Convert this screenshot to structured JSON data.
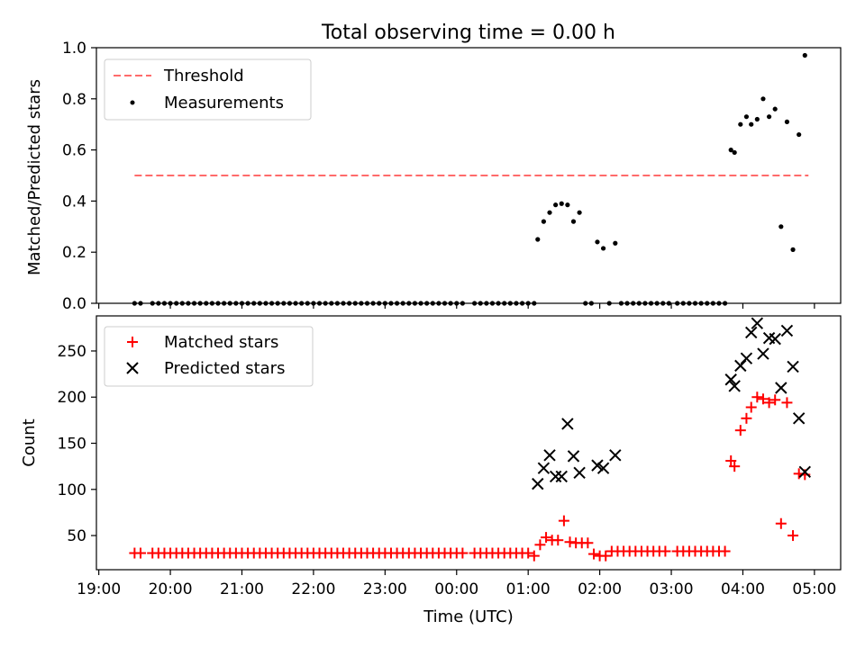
{
  "figure": {
    "title": "Total observing time = 0.00 h",
    "xlabel": "Time (UTC)",
    "x_ticks": [
      "19:00",
      "20:00",
      "21:00",
      "22:00",
      "23:00",
      "00:00",
      "01:00",
      "02:00",
      "03:00",
      "04:00",
      "05:00"
    ]
  },
  "chart_data": [
    {
      "type": "scatter",
      "ylabel": "Matched/Predicted stars",
      "ylim": [
        0,
        1.0
      ],
      "y_ticks": [
        "0.0",
        "0.2",
        "0.4",
        "0.6",
        "0.8",
        "1.0"
      ],
      "legend_position": "upper-left",
      "threshold": {
        "name": "Threshold",
        "value": 0.5,
        "color": "#ff6b6b",
        "x_start": "19:30",
        "x_end": "04:55"
      },
      "series": [
        {
          "name": "Measurements",
          "color": "#000000",
          "marker": "dot",
          "points": [
            [
              "19:30",
              0
            ],
            [
              "19:35",
              0
            ],
            [
              "19:45",
              0
            ],
            [
              "19:50",
              0
            ],
            [
              "19:55",
              0
            ],
            [
              "20:00",
              0
            ],
            [
              "20:05",
              0
            ],
            [
              "20:10",
              0
            ],
            [
              "20:15",
              0
            ],
            [
              "20:20",
              0
            ],
            [
              "20:25",
              0
            ],
            [
              "20:30",
              0
            ],
            [
              "20:35",
              0
            ],
            [
              "20:40",
              0
            ],
            [
              "20:45",
              0
            ],
            [
              "20:50",
              0
            ],
            [
              "20:55",
              0
            ],
            [
              "21:00",
              0
            ],
            [
              "21:05",
              0
            ],
            [
              "21:10",
              0
            ],
            [
              "21:15",
              0
            ],
            [
              "21:20",
              0
            ],
            [
              "21:25",
              0
            ],
            [
              "21:30",
              0
            ],
            [
              "21:35",
              0
            ],
            [
              "21:40",
              0
            ],
            [
              "21:45",
              0
            ],
            [
              "21:50",
              0
            ],
            [
              "21:55",
              0
            ],
            [
              "22:00",
              0
            ],
            [
              "22:05",
              0
            ],
            [
              "22:10",
              0
            ],
            [
              "22:15",
              0
            ],
            [
              "22:20",
              0
            ],
            [
              "22:25",
              0
            ],
            [
              "22:30",
              0
            ],
            [
              "22:35",
              0
            ],
            [
              "22:40",
              0
            ],
            [
              "22:45",
              0
            ],
            [
              "22:50",
              0
            ],
            [
              "22:55",
              0
            ],
            [
              "23:00",
              0
            ],
            [
              "23:05",
              0
            ],
            [
              "23:10",
              0
            ],
            [
              "23:15",
              0
            ],
            [
              "23:20",
              0
            ],
            [
              "23:25",
              0
            ],
            [
              "23:30",
              0
            ],
            [
              "23:35",
              0
            ],
            [
              "23:40",
              0
            ],
            [
              "23:45",
              0
            ],
            [
              "23:50",
              0
            ],
            [
              "23:55",
              0
            ],
            [
              "00:00",
              0
            ],
            [
              "00:05",
              0
            ],
            [
              "00:15",
              0
            ],
            [
              "00:20",
              0
            ],
            [
              "00:25",
              0
            ],
            [
              "00:30",
              0
            ],
            [
              "00:35",
              0
            ],
            [
              "00:40",
              0
            ],
            [
              "00:45",
              0
            ],
            [
              "00:50",
              0
            ],
            [
              "00:55",
              0
            ],
            [
              "01:00",
              0
            ],
            [
              "01:05",
              0
            ],
            [
              "01:08",
              0.25
            ],
            [
              "01:13",
              0.32
            ],
            [
              "01:18",
              0.355
            ],
            [
              "01:23",
              0.385
            ],
            [
              "01:28",
              0.39
            ],
            [
              "01:33",
              0.385
            ],
            [
              "01:38",
              0.32
            ],
            [
              "01:43",
              0.355
            ],
            [
              "01:48",
              0
            ],
            [
              "01:53",
              0
            ],
            [
              "01:58",
              0.24
            ],
            [
              "02:03",
              0.215
            ],
            [
              "02:08",
              0
            ],
            [
              "02:13",
              0.235
            ],
            [
              "02:18",
              0
            ],
            [
              "02:23",
              0
            ],
            [
              "02:28",
              0
            ],
            [
              "02:33",
              0
            ],
            [
              "02:38",
              0
            ],
            [
              "02:43",
              0
            ],
            [
              "02:48",
              0
            ],
            [
              "02:53",
              0
            ],
            [
              "02:58",
              0
            ],
            [
              "03:05",
              0
            ],
            [
              "03:10",
              0
            ],
            [
              "03:15",
              0
            ],
            [
              "03:20",
              0
            ],
            [
              "03:25",
              0
            ],
            [
              "03:30",
              0
            ],
            [
              "03:35",
              0
            ],
            [
              "03:40",
              0
            ],
            [
              "03:45",
              0
            ],
            [
              "03:50",
              0.6
            ],
            [
              "03:53",
              0.59
            ],
            [
              "03:58",
              0.7
            ],
            [
              "04:03",
              0.73
            ],
            [
              "04:07",
              0.7
            ],
            [
              "04:12",
              0.72
            ],
            [
              "04:17",
              0.8
            ],
            [
              "04:22",
              0.73
            ],
            [
              "04:27",
              0.76
            ],
            [
              "04:32",
              0.3
            ],
            [
              "04:37",
              0.71
            ],
            [
              "04:42",
              0.21
            ],
            [
              "04:47",
              0.66
            ],
            [
              "04:52",
              0.97
            ]
          ]
        }
      ]
    },
    {
      "type": "scatter",
      "ylabel": "Count",
      "ylim": [
        13,
        288
      ],
      "y_ticks": [
        "50",
        "100",
        "150",
        "200",
        "250"
      ],
      "legend_position": "upper-left",
      "series": [
        {
          "name": "Matched stars",
          "color": "#ff0000",
          "marker": "plus",
          "points": [
            [
              "19:30",
              31
            ],
            [
              "19:35",
              31
            ],
            [
              "19:45",
              31
            ],
            [
              "19:50",
              31
            ],
            [
              "19:55",
              31
            ],
            [
              "20:00",
              31
            ],
            [
              "20:05",
              31
            ],
            [
              "20:10",
              31
            ],
            [
              "20:15",
              31
            ],
            [
              "20:20",
              31
            ],
            [
              "20:25",
              31
            ],
            [
              "20:30",
              31
            ],
            [
              "20:35",
              31
            ],
            [
              "20:40",
              31
            ],
            [
              "20:45",
              31
            ],
            [
              "20:50",
              31
            ],
            [
              "20:55",
              31
            ],
            [
              "21:00",
              31
            ],
            [
              "21:05",
              31
            ],
            [
              "21:10",
              31
            ],
            [
              "21:15",
              31
            ],
            [
              "21:20",
              31
            ],
            [
              "21:25",
              31
            ],
            [
              "21:30",
              31
            ],
            [
              "21:35",
              31
            ],
            [
              "21:40",
              31
            ],
            [
              "21:45",
              31
            ],
            [
              "21:50",
              31
            ],
            [
              "21:55",
              31
            ],
            [
              "22:00",
              31
            ],
            [
              "22:05",
              31
            ],
            [
              "22:10",
              31
            ],
            [
              "22:15",
              31
            ],
            [
              "22:20",
              31
            ],
            [
              "22:25",
              31
            ],
            [
              "22:30",
              31
            ],
            [
              "22:35",
              31
            ],
            [
              "22:40",
              31
            ],
            [
              "22:45",
              31
            ],
            [
              "22:50",
              31
            ],
            [
              "22:55",
              31
            ],
            [
              "23:00",
              31
            ],
            [
              "23:05",
              31
            ],
            [
              "23:10",
              31
            ],
            [
              "23:15",
              31
            ],
            [
              "23:20",
              31
            ],
            [
              "23:25",
              31
            ],
            [
              "23:30",
              31
            ],
            [
              "23:35",
              31
            ],
            [
              "23:40",
              31
            ],
            [
              "23:45",
              31
            ],
            [
              "23:50",
              31
            ],
            [
              "23:55",
              31
            ],
            [
              "00:00",
              31
            ],
            [
              "00:05",
              31
            ],
            [
              "00:15",
              31
            ],
            [
              "00:20",
              31
            ],
            [
              "00:25",
              31
            ],
            [
              "00:30",
              31
            ],
            [
              "00:35",
              31
            ],
            [
              "00:40",
              31
            ],
            [
              "00:45",
              31
            ],
            [
              "00:50",
              31
            ],
            [
              "00:55",
              31
            ],
            [
              "01:00",
              31
            ],
            [
              "01:05",
              28
            ],
            [
              "01:10",
              40
            ],
            [
              "01:15",
              48
            ],
            [
              "01:20",
              45
            ],
            [
              "01:25",
              45
            ],
            [
              "01:30",
              66
            ],
            [
              "01:35",
              43
            ],
            [
              "01:40",
              42
            ],
            [
              "01:45",
              42
            ],
            [
              "01:50",
              42
            ],
            [
              "01:55",
              30
            ],
            [
              "02:00",
              28
            ],
            [
              "02:05",
              28
            ],
            [
              "02:10",
              33
            ],
            [
              "02:15",
              33
            ],
            [
              "02:20",
              33
            ],
            [
              "02:25",
              33
            ],
            [
              "02:30",
              33
            ],
            [
              "02:35",
              33
            ],
            [
              "02:40",
              33
            ],
            [
              "02:45",
              33
            ],
            [
              "02:50",
              33
            ],
            [
              "02:55",
              33
            ],
            [
              "03:05",
              33
            ],
            [
              "03:10",
              33
            ],
            [
              "03:15",
              33
            ],
            [
              "03:20",
              33
            ],
            [
              "03:25",
              33
            ],
            [
              "03:30",
              33
            ],
            [
              "03:35",
              33
            ],
            [
              "03:40",
              33
            ],
            [
              "03:45",
              33
            ],
            [
              "03:50",
              131
            ],
            [
              "03:53",
              125
            ],
            [
              "03:58",
              164
            ],
            [
              "04:03",
              177
            ],
            [
              "04:07",
              189
            ],
            [
              "04:12",
              200
            ],
            [
              "04:17",
              198
            ],
            [
              "04:22",
              194
            ],
            [
              "04:27",
              197
            ],
            [
              "04:32",
              63
            ],
            [
              "04:37",
              194
            ],
            [
              "04:42",
              50
            ],
            [
              "04:47",
              117
            ],
            [
              "04:52",
              116
            ]
          ]
        },
        {
          "name": "Predicted stars",
          "color": "#000000",
          "marker": "x",
          "points": [
            [
              "01:08",
              106
            ],
            [
              "01:13",
              123
            ],
            [
              "01:18",
              137
            ],
            [
              "01:23",
              114
            ],
            [
              "01:28",
              114
            ],
            [
              "01:33",
              171
            ],
            [
              "01:38",
              136
            ],
            [
              "01:43",
              118
            ],
            [
              "01:58",
              126
            ],
            [
              "02:03",
              123
            ],
            [
              "02:13",
              137
            ],
            [
              "03:50",
              219
            ],
            [
              "03:53",
              212
            ],
            [
              "03:58",
              234
            ],
            [
              "04:03",
              242
            ],
            [
              "04:07",
              270
            ],
            [
              "04:12",
              280
            ],
            [
              "04:17",
              247
            ],
            [
              "04:22",
              264
            ],
            [
              "04:27",
              263
            ],
            [
              "04:32",
              210
            ],
            [
              "04:37",
              272
            ],
            [
              "04:42",
              233
            ],
            [
              "04:47",
              177
            ],
            [
              "04:52",
              119
            ]
          ]
        }
      ]
    }
  ]
}
